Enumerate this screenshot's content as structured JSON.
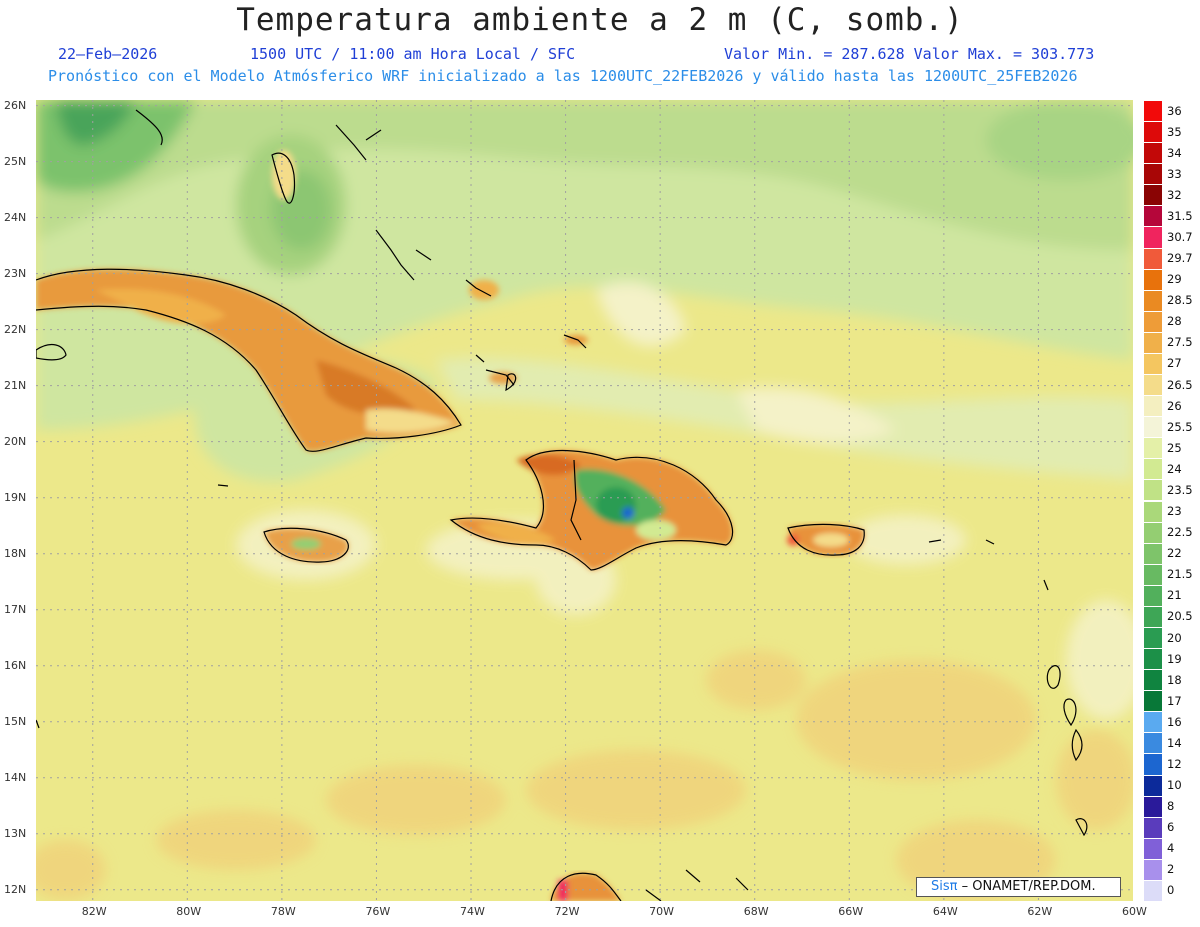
{
  "header": {
    "title": "Temperatura ambiente a 2 m (C, somb.)",
    "date": "22–Feb–2026",
    "time": "1500 UTC / 11:00 am Hora Local / SFC",
    "minmax": "Valor Min. = 287.628  Valor Max. = 303.773",
    "model": "Pronóstico con el Modelo Atmósferico WRF inicializado a las 1200UTC_22FEB2026 y válido hasta las  1200UTC_25FEB2026"
  },
  "map": {
    "lon_range": [
      -83.2,
      -60
    ],
    "lat_range": [
      11.8,
      26.1
    ],
    "lon_ticks": [
      {
        "value": -82,
        "label": "82W"
      },
      {
        "value": -80,
        "label": "80W"
      },
      {
        "value": -78,
        "label": "78W"
      },
      {
        "value": -76,
        "label": "76W"
      },
      {
        "value": -74,
        "label": "74W"
      },
      {
        "value": -72,
        "label": "72W"
      },
      {
        "value": -70,
        "label": "70W"
      },
      {
        "value": -68,
        "label": "68W"
      },
      {
        "value": -66,
        "label": "66W"
      },
      {
        "value": -64,
        "label": "64W"
      },
      {
        "value": -62,
        "label": "62W"
      },
      {
        "value": -60,
        "label": "60W"
      }
    ],
    "lat_ticks": [
      {
        "value": 26,
        "label": "26N"
      },
      {
        "value": 25,
        "label": "25N"
      },
      {
        "value": 24,
        "label": "24N"
      },
      {
        "value": 23,
        "label": "23N"
      },
      {
        "value": 22,
        "label": "22N"
      },
      {
        "value": 21,
        "label": "21N"
      },
      {
        "value": 20,
        "label": "20N"
      },
      {
        "value": 19,
        "label": "19N"
      },
      {
        "value": 18,
        "label": "18N"
      },
      {
        "value": 17,
        "label": "17N"
      },
      {
        "value": 16,
        "label": "16N"
      },
      {
        "value": 15,
        "label": "15N"
      },
      {
        "value": 14,
        "label": "14N"
      },
      {
        "value": 13,
        "label": "13N"
      },
      {
        "value": 12,
        "label": "12N"
      }
    ]
  },
  "colorbar": [
    {
      "label": "36",
      "color": "#f20a0a"
    },
    {
      "label": "35",
      "color": "#dd0a0a"
    },
    {
      "label": "34",
      "color": "#c20808"
    },
    {
      "label": "33",
      "color": "#a80606"
    },
    {
      "label": "32",
      "color": "#8a0404"
    },
    {
      "label": "31.5",
      "color": "#b5063a"
    },
    {
      "label": "30.7",
      "color": "#f0245e"
    },
    {
      "label": "29.7",
      "color": "#f05a3a"
    },
    {
      "label": "29",
      "color": "#e8720c"
    },
    {
      "label": "28.5",
      "color": "#ea8a22"
    },
    {
      "label": "28",
      "color": "#ee9c38"
    },
    {
      "label": "27.5",
      "color": "#f0b04a"
    },
    {
      "label": "27",
      "color": "#f4c660"
    },
    {
      "label": "26.5",
      "color": "#f4dc8a"
    },
    {
      "label": "26",
      "color": "#f4efc0"
    },
    {
      "label": "25.5",
      "color": "#f4f4d8"
    },
    {
      "label": "25",
      "color": "#e4f0a8"
    },
    {
      "label": "24",
      "color": "#d2ea92"
    },
    {
      "label": "23.5",
      "color": "#c0e286"
    },
    {
      "label": "23",
      "color": "#aad87a"
    },
    {
      "label": "22.5",
      "color": "#94ce72"
    },
    {
      "label": "22",
      "color": "#7ec46a"
    },
    {
      "label": "21.5",
      "color": "#68ba62"
    },
    {
      "label": "21",
      "color": "#52b05c"
    },
    {
      "label": "20.5",
      "color": "#3ea656"
    },
    {
      "label": "20",
      "color": "#2a9c52"
    },
    {
      "label": "19",
      "color": "#1c9048"
    },
    {
      "label": "18",
      "color": "#108440"
    },
    {
      "label": "17",
      "color": "#087838"
    },
    {
      "label": "16",
      "color": "#5aaaf0"
    },
    {
      "label": "14",
      "color": "#3a8ae0"
    },
    {
      "label": "12",
      "color": "#1c66d0"
    },
    {
      "label": "10",
      "color": "#0c2a9a"
    },
    {
      "label": "8",
      "color": "#2a1a9a"
    },
    {
      "label": "6",
      "color": "#5a3cbc"
    },
    {
      "label": "4",
      "color": "#8060d8"
    },
    {
      "label": "2",
      "color": "#a890ec"
    },
    {
      "label": "0",
      "color": "#dcdcf8"
    }
  ],
  "credit": {
    "brand": "Sisπ",
    "org": "– ONAMET/REP.DOM."
  }
}
